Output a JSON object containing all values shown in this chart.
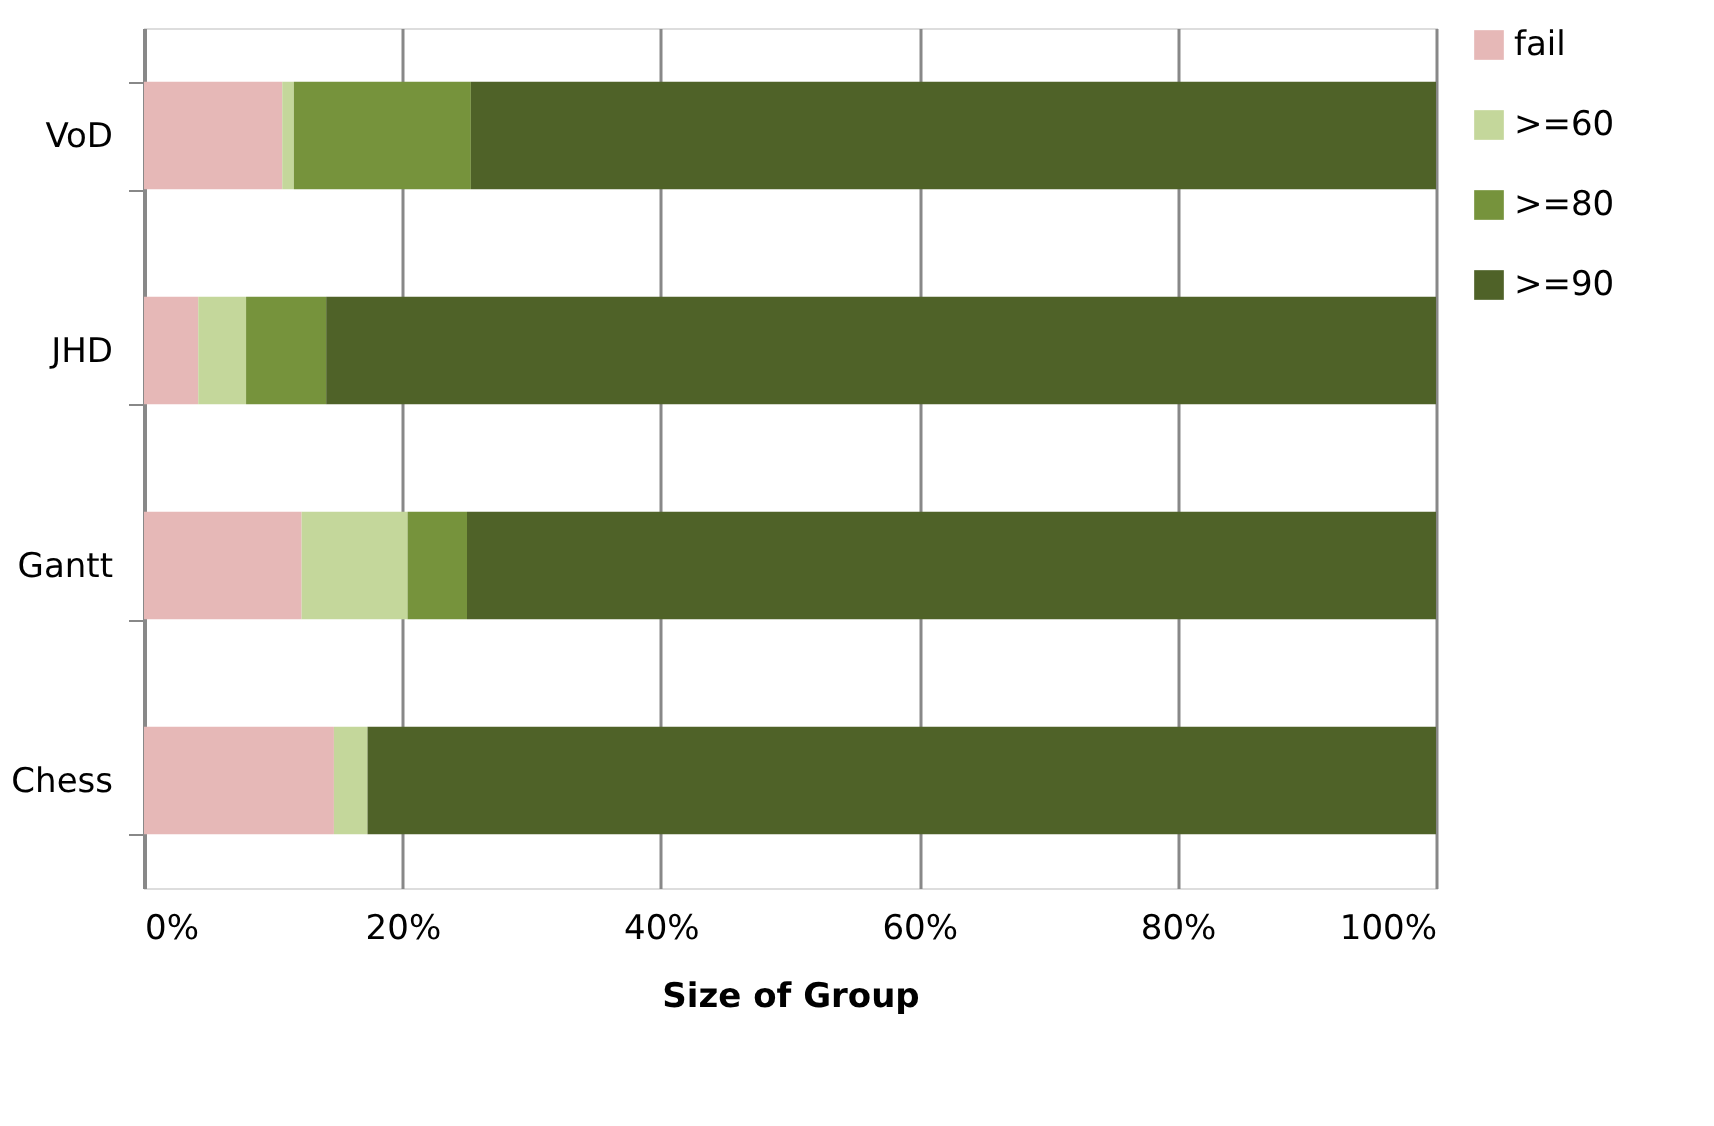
{
  "chart_data": {
    "type": "bar",
    "orientation": "horizontal",
    "stacked": true,
    "xlabel": "Size of Group",
    "categories": [
      "VoD",
      "JHD",
      "Gantt",
      "Chess"
    ],
    "series": [
      {
        "name": "fail",
        "color": "#e6b8b7",
        "values": [
          10.7,
          4.2,
          12.2,
          14.7
        ]
      },
      {
        "name": ">=60",
        "color": "#c4d79b",
        "values": [
          0.9,
          3.7,
          8.2,
          2.6
        ]
      },
      {
        "name": ">=80",
        "color": "#76933c",
        "values": [
          13.7,
          6.2,
          4.6,
          0
        ]
      },
      {
        "name": ">=90",
        "color": "#4f6228",
        "values": [
          74.7,
          85.9,
          75.0,
          82.7
        ]
      }
    ],
    "xlim": [
      0,
      100
    ],
    "xticks": [
      {
        "value": 0,
        "label": "0%"
      },
      {
        "value": 20,
        "label": "20%"
      },
      {
        "value": 40,
        "label": "40%"
      },
      {
        "value": 60,
        "label": "60%"
      },
      {
        "value": 80,
        "label": "80%"
      },
      {
        "value": 100,
        "label": "100%"
      }
    ],
    "grid": "x",
    "legend": "right"
  }
}
